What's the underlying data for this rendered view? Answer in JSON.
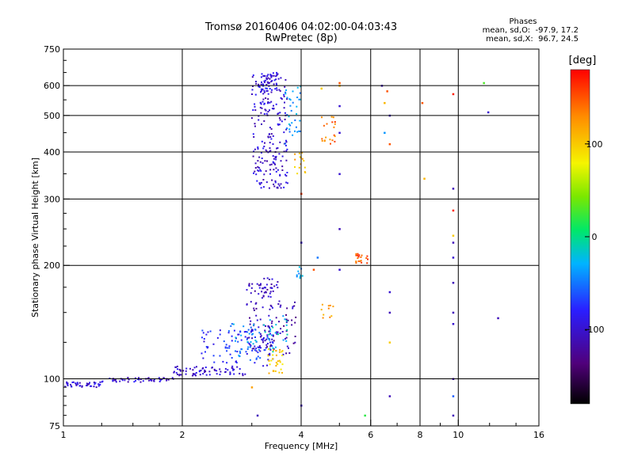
{
  "header": {
    "title_line1": "Tromsø 20160406 04:02:00-04:03:43",
    "title_line2": "RwPretec (8p)",
    "stats_heading": "Phases",
    "stats_line1": "mean, sd,O:  -97.9, 17.2",
    "stats_line2": "mean, sd,X:  96.7, 24.5"
  },
  "colorbar": {
    "label": "[deg]",
    "range": [
      -180,
      180
    ],
    "ticks": [
      {
        "v": 100,
        "label": "100"
      },
      {
        "v": 0,
        "label": "0"
      },
      {
        "v": -100,
        "label": "-100"
      }
    ]
  },
  "chart_data": {
    "type": "scatter",
    "title": "Tromsø 20160406 04:02:00-04:03:43",
    "subtitle": "RwPretec (8p)",
    "xlabel": "Frequency [MHz]",
    "ylabel": "Stationary phase Virtual Height [km]",
    "x_scale": "log",
    "y_scale": "log",
    "xlim": [
      1,
      16
    ],
    "ylim": [
      75,
      750
    ],
    "x_ticks": [
      1,
      2,
      4,
      6,
      8,
      10,
      16
    ],
    "y_ticks": [
      75,
      100,
      200,
      300,
      400,
      500,
      600,
      750
    ],
    "grid_x": [
      2,
      4,
      6,
      8,
      10
    ],
    "grid_y": [
      100,
      200,
      300,
      400,
      500,
      600
    ],
    "color_variable": "phase [deg]",
    "clusters": [
      {
        "description_phase": -100,
        "f": [
          1.0,
          1.25
        ],
        "h": [
          95,
          98
        ],
        "n": 40
      },
      {
        "phase": -100,
        "f": [
          1.25,
          1.9
        ],
        "h": [
          98,
          101
        ],
        "n": 50
      },
      {
        "phase": -100,
        "f": [
          1.9,
          2.9
        ],
        "h": [
          102,
          108
        ],
        "n": 70
      },
      {
        "phase": -80,
        "f": [
          2.2,
          3.4
        ],
        "h": [
          108,
          135
        ],
        "n": 90
      },
      {
        "phase": -110,
        "f": [
          2.9,
          3.4
        ],
        "h": [
          120,
          180
        ],
        "n": 80
      },
      {
        "phase": -115,
        "f": [
          3.3,
          3.9
        ],
        "h": [
          115,
          160
        ],
        "n": 50
      },
      {
        "phase": -40,
        "f": [
          2.6,
          3.2
        ],
        "h": [
          112,
          140
        ],
        "n": 35
      },
      {
        "phase": -20,
        "f": [
          3.2,
          3.7
        ],
        "h": [
          118,
          148
        ],
        "n": 25
      },
      {
        "phase": 100,
        "f": [
          3.3,
          3.6
        ],
        "h": [
          103,
          120
        ],
        "n": 30
      },
      {
        "phase": -100,
        "f": [
          3.1,
          3.6
        ],
        "h": [
          160,
          185
        ],
        "n": 25
      },
      {
        "phase": -100,
        "f": [
          3.0,
          3.7
        ],
        "h": [
          320,
          640
        ],
        "n": 220
      },
      {
        "phase": -90,
        "f": [
          3.1,
          3.5
        ],
        "h": [
          580,
          650
        ],
        "n": 40
      },
      {
        "phase": -40,
        "f": [
          3.6,
          4.0
        ],
        "h": [
          420,
          600
        ],
        "n": 35
      },
      {
        "phase": 110,
        "f": [
          3.85,
          4.1
        ],
        "h": [
          350,
          400
        ],
        "n": 15
      },
      {
        "phase": 140,
        "f": [
          4.5,
          4.9
        ],
        "h": [
          420,
          500
        ],
        "n": 20
      },
      {
        "phase": 150,
        "f": [
          5.5,
          5.9
        ],
        "h": [
          200,
          215
        ],
        "n": 20
      },
      {
        "phase": 120,
        "f": [
          4.5,
          4.9
        ],
        "h": [
          145,
          160
        ],
        "n": 10
      },
      {
        "phase": -40,
        "f": [
          3.9,
          4.1
        ],
        "h": [
          185,
          200
        ],
        "n": 10
      }
    ],
    "points": [
      {
        "f": 5.0,
        "h": 610,
        "phase": 150
      },
      {
        "f": 5.0,
        "h": 600,
        "phase": 110
      },
      {
        "f": 5.0,
        "h": 530,
        "phase": -100
      },
      {
        "f": 5.0,
        "h": 450,
        "phase": -100
      },
      {
        "f": 5.0,
        "h": 350,
        "phase": -100
      },
      {
        "f": 5.0,
        "h": 250,
        "phase": -110
      },
      {
        "f": 5.0,
        "h": 195,
        "phase": -100
      },
      {
        "f": 4.3,
        "h": 195,
        "phase": 150
      },
      {
        "f": 4.4,
        "h": 210,
        "phase": -50
      },
      {
        "f": 4.0,
        "h": 230,
        "phase": -100
      },
      {
        "f": 4.5,
        "h": 590,
        "phase": 100
      },
      {
        "f": 4.0,
        "h": 310,
        "phase": 160
      },
      {
        "f": 6.4,
        "h": 600,
        "phase": -110
      },
      {
        "f": 6.6,
        "h": 580,
        "phase": 150
      },
      {
        "f": 6.5,
        "h": 540,
        "phase": 110
      },
      {
        "f": 6.7,
        "h": 500,
        "phase": -110
      },
      {
        "f": 6.5,
        "h": 450,
        "phase": -40
      },
      {
        "f": 6.7,
        "h": 420,
        "phase": 150
      },
      {
        "f": 6.7,
        "h": 170,
        "phase": -100
      },
      {
        "f": 6.7,
        "h": 150,
        "phase": -110
      },
      {
        "f": 6.7,
        "h": 125,
        "phase": 100
      },
      {
        "f": 6.7,
        "h": 90,
        "phase": -110
      },
      {
        "f": 5.8,
        "h": 80,
        "phase": 20
      },
      {
        "f": 8.1,
        "h": 540,
        "phase": 150
      },
      {
        "f": 8.2,
        "h": 340,
        "phase": 110
      },
      {
        "f": 9.7,
        "h": 570,
        "phase": 170
      },
      {
        "f": 9.7,
        "h": 320,
        "phase": -110
      },
      {
        "f": 9.7,
        "h": 280,
        "phase": 170
      },
      {
        "f": 9.7,
        "h": 240,
        "phase": 100
      },
      {
        "f": 9.7,
        "h": 230,
        "phase": -110
      },
      {
        "f": 9.7,
        "h": 210,
        "phase": -100
      },
      {
        "f": 9.7,
        "h": 180,
        "phase": -110
      },
      {
        "f": 9.7,
        "h": 150,
        "phase": -110
      },
      {
        "f": 9.7,
        "h": 140,
        "phase": -100
      },
      {
        "f": 9.7,
        "h": 100,
        "phase": -110
      },
      {
        "f": 9.7,
        "h": 90,
        "phase": -60
      },
      {
        "f": 9.7,
        "h": 80,
        "phase": -110
      },
      {
        "f": 11.6,
        "h": 610,
        "phase": 30
      },
      {
        "f": 11.9,
        "h": 510,
        "phase": -100
      },
      {
        "f": 12.6,
        "h": 145,
        "phase": -110
      },
      {
        "f": 4.0,
        "h": 85,
        "phase": -110
      },
      {
        "f": 3.1,
        "h": 80,
        "phase": -110
      },
      {
        "f": 3.4,
        "h": 105,
        "phase": 110
      },
      {
        "f": 3.0,
        "h": 95,
        "phase": 120
      }
    ]
  }
}
